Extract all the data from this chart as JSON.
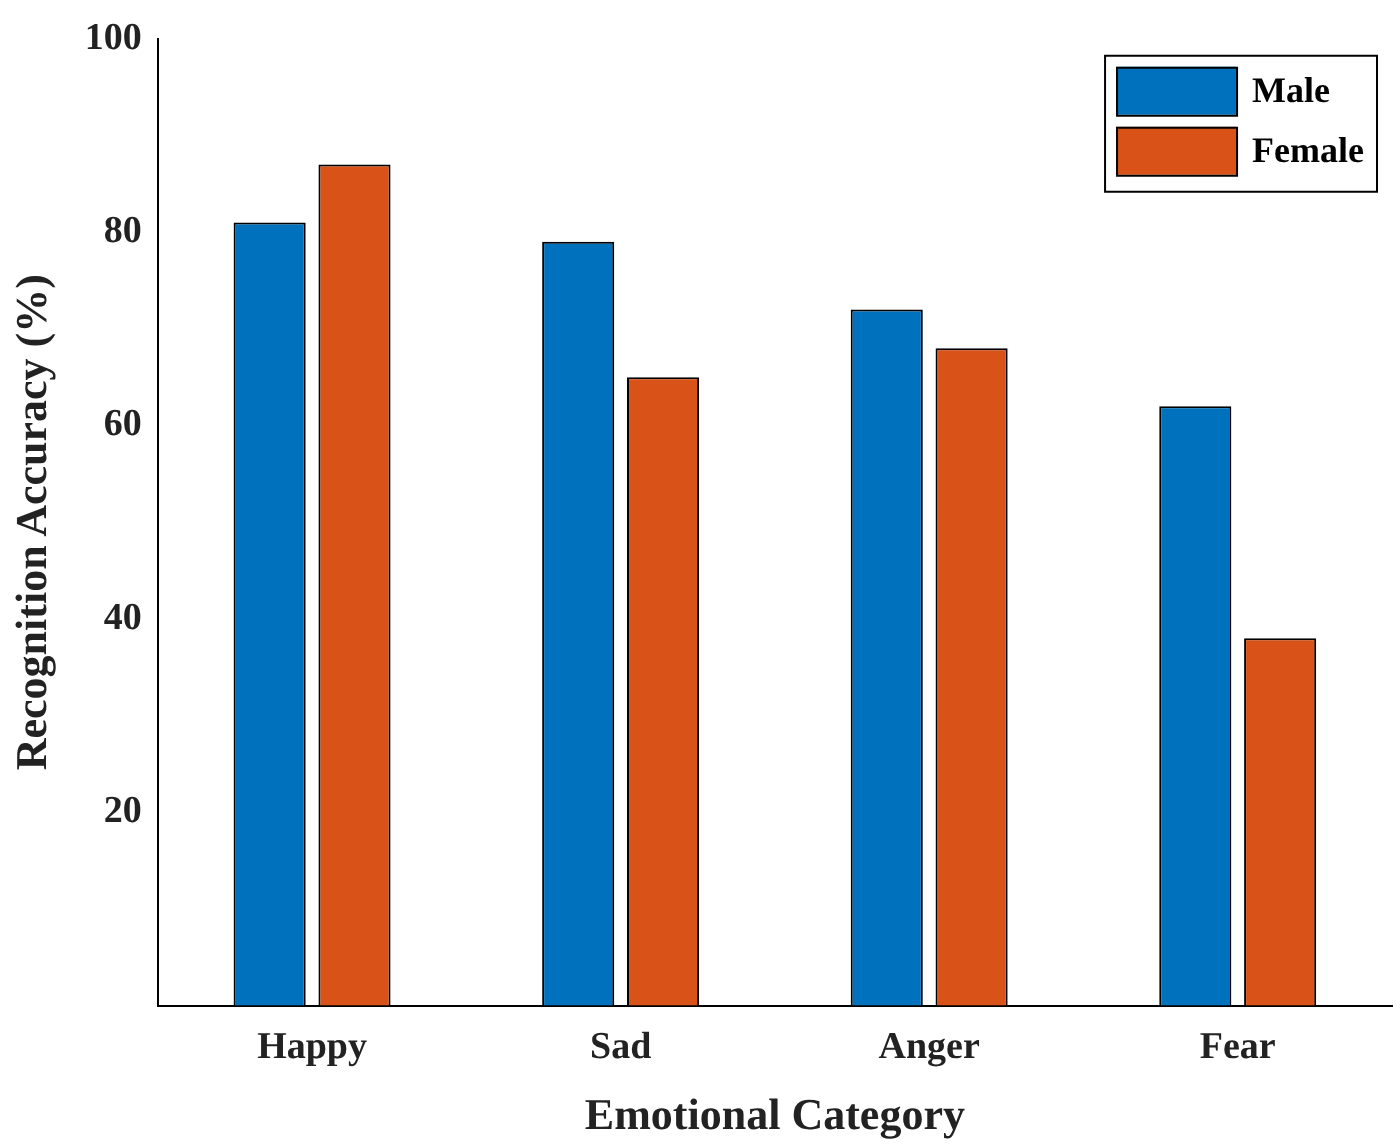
{
  "chart_data": {
    "type": "bar",
    "xlabel": "Emotional Category",
    "ylabel": "Recognition Accuracy (%)",
    "categories": [
      "Happy",
      "Sad",
      "Anger",
      "Fear"
    ],
    "series": [
      {
        "name": "Male",
        "color": "#0072bd",
        "values": [
          81,
          79,
          72,
          62
        ]
      },
      {
        "name": "Female",
        "color": "#d95319",
        "values": [
          87,
          65,
          68,
          38
        ]
      }
    ],
    "ylim": [
      0,
      100
    ],
    "yticks": [
      20,
      40,
      60,
      80,
      100
    ],
    "legend": "top right"
  }
}
